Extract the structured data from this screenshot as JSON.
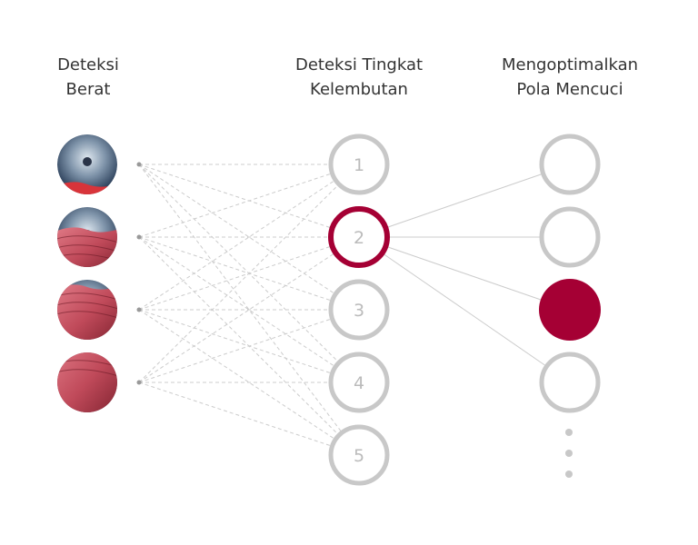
{
  "columns": [
    {
      "title_lines": [
        "Deteksi",
        "Berat"
      ]
    },
    {
      "title_lines": [
        "Deteksi Tingkat",
        "Kelembutan"
      ]
    },
    {
      "title_lines": [
        "Mengoptimalkan",
        "Pola Mencuci"
      ]
    }
  ],
  "weight_levels": [
    "load-light",
    "load-medium",
    "load-heavy",
    "load-full"
  ],
  "softness_levels": [
    "1",
    "2",
    "3",
    "4",
    "5"
  ],
  "selected_softness": "2",
  "wash_patterns": 4,
  "selected_pattern_index": 2,
  "colors": {
    "accent": "#a50034",
    "ring": "#c8c8c8",
    "line": "#cccccc",
    "text": "#333333"
  }
}
